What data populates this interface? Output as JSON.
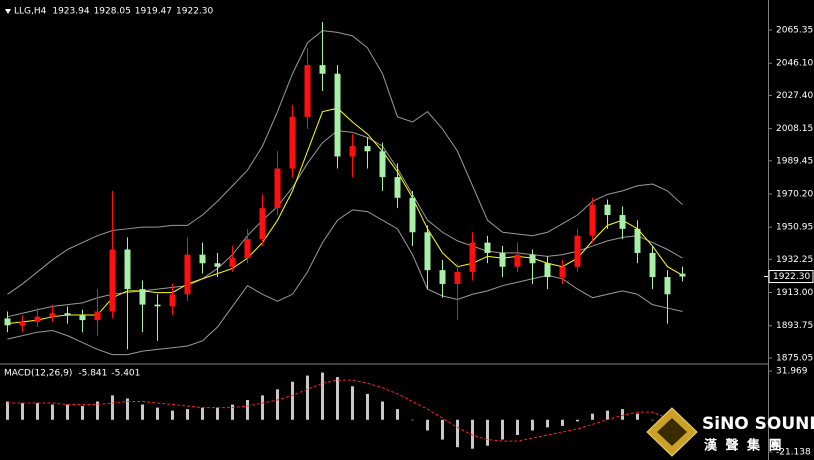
{
  "chart_data": [
    {
      "type": "candlestick",
      "title": "LLG,H4",
      "header_values": [
        1923.94,
        1928.05,
        1919.47,
        {
          "value": 1922.3,
          "label": "1922.30"
        }
      ],
      "open": [
        1898,
        1894,
        1896,
        1899,
        1901,
        1900,
        1897,
        1902,
        1938,
        1915,
        1906,
        1905,
        1912,
        1935,
        1930,
        1928,
        1933,
        1944,
        1962,
        1985,
        2015,
        2045,
        2040,
        1992,
        1998,
        1995,
        1980,
        1968,
        1948,
        1926,
        1918,
        1925,
        1942,
        1936,
        1928,
        1935,
        1930,
        1922,
        1928,
        1946,
        1964,
        1958,
        1950,
        1936,
        1922,
        1923.94
      ],
      "high": [
        1902,
        1900,
        1904,
        1906,
        1905,
        1903,
        1915,
        1972,
        1945,
        1920,
        1912,
        1918,
        1945,
        1942,
        1936,
        1940,
        1950,
        1970,
        1995,
        2022,
        2055,
        2070,
        2045,
        2005,
        2003,
        2000,
        1988,
        1972,
        1952,
        1932,
        1930,
        1948,
        1946,
        1940,
        1942,
        1938,
        1934,
        1932,
        1950,
        1968,
        1967,
        1963,
        1955,
        1940,
        1926,
        1928.05
      ],
      "low": [
        1890,
        1890,
        1893,
        1896,
        1895,
        1890,
        1888,
        1898,
        1880,
        1890,
        1885,
        1900,
        1908,
        1924,
        1922,
        1925,
        1930,
        1940,
        1958,
        1980,
        2008,
        2030,
        1985,
        1980,
        1985,
        1972,
        1962,
        1940,
        1915,
        1910,
        1897,
        1920,
        1930,
        1922,
        1925,
        1918,
        1915,
        1918,
        1925,
        1942,
        1950,
        1944,
        1930,
        1915,
        1895,
        1919.47
      ],
      "close": [
        1894,
        1896,
        1899,
        1901,
        1900,
        1897,
        1902,
        1938,
        1915,
        1906,
        1905,
        1912,
        1935,
        1930,
        1928,
        1933,
        1944,
        1962,
        1985,
        2015,
        2045,
        2040,
        1992,
        1998,
        1995,
        1980,
        1968,
        1948,
        1926,
        1918,
        1925,
        1942,
        1936,
        1928,
        1935,
        1930,
        1922,
        1928,
        1946,
        1964,
        1958,
        1950,
        1936,
        1922,
        1912,
        1922.3
      ],
      "up_color": "#ff1010",
      "down_color": "#a8f0a8",
      "lines": [
        {
          "color": "#9a9a9a",
          "values": [
            1912,
            1918,
            1925,
            1932,
            1938,
            1942,
            1946,
            1949,
            1950,
            1951,
            1951,
            1952,
            1952,
            1958,
            1966,
            1975,
            1984,
            1998,
            2018,
            2040,
            2058,
            2065,
            2064,
            2062,
            2055,
            2040,
            2015,
            2012,
            2018,
            2008,
            1995,
            1975,
            1955,
            1948,
            1947,
            1946,
            1948,
            1953,
            1958,
            1966,
            1970,
            1972,
            1975,
            1976,
            1972,
            1964
          ]
        },
        {
          "color": "#9a9a9a",
          "values": [
            1899,
            1901,
            1903,
            1905,
            1906,
            1907,
            1910,
            1912,
            1913,
            1914,
            1915,
            1916,
            1917,
            1921,
            1927,
            1935,
            1946,
            1955,
            1963,
            1974,
            1988,
            2000,
            2007,
            2006,
            2003,
            1998,
            1985,
            1970,
            1955,
            1948,
            1943,
            1940,
            1937,
            1936,
            1936,
            1935,
            1934,
            1935,
            1937,
            1940,
            1943,
            1945,
            1946,
            1942,
            1938,
            1933
          ]
        },
        {
          "color": "#9a9a9a",
          "values": [
            1886,
            1888,
            1890,
            1891,
            1888,
            1884,
            1880,
            1877,
            1877,
            1879,
            1880,
            1881,
            1882,
            1885,
            1893,
            1905,
            1917,
            1912,
            1908,
            1912,
            1925,
            1942,
            1955,
            1961,
            1960,
            1955,
            1950,
            1935,
            1915,
            1911,
            1909,
            1912,
            1914,
            1917,
            1919,
            1921,
            1923,
            1921,
            1915,
            1910,
            1912,
            1914,
            1912,
            1906,
            1904,
            1902
          ]
        },
        {
          "color": "#ffff00",
          "values": [
            1895,
            1896,
            1897,
            1899,
            1900,
            1900,
            1900,
            1910,
            1914,
            1914,
            1913,
            1913,
            1918,
            1921,
            1924,
            1927,
            1933,
            1942,
            1955,
            1972,
            1995,
            2018,
            2020,
            2012,
            2005,
            1995,
            1983,
            1968,
            1950,
            1936,
            1928,
            1930,
            1934,
            1933,
            1934,
            1933,
            1930,
            1928,
            1933,
            1943,
            1952,
            1955,
            1950,
            1940,
            1928,
            1923
          ]
        }
      ],
      "ylim": [
        1872.7,
        2079.9
      ],
      "yticks": [
        1875.05,
        1893.75,
        {
          "value": 1913,
          "label": "1913.00"
        },
        1932.25,
        1950.95,
        {
          "value": 1970.2,
          "label": "1970.20"
        },
        1989.45,
        2008.15,
        {
          "value": 2027.4,
          "label": "2027.40"
        },
        {
          "value": 2046.1,
          "label": "2046.10"
        },
        2065.35
      ],
      "last_price": {
        "value": 1922.3,
        "label": "1922.30"
      }
    },
    {
      "type": "macd",
      "title": "MACD(12,26,9)",
      "header_values": [
        -5.841,
        -5.401
      ],
      "histogram": {
        "color": "#c8c8c8",
        "values": [
          12,
          11,
          11,
          10,
          10,
          9,
          12,
          16,
          14,
          10,
          8,
          6,
          7,
          8,
          8,
          10,
          13,
          16,
          20,
          25,
          29,
          31,
          28,
          22,
          17,
          12,
          7,
          0,
          -7,
          -13,
          -18,
          -19,
          -17,
          -13,
          -10,
          -7,
          -5,
          -4,
          -1,
          4,
          6,
          7,
          4,
          0,
          -4,
          -5.841
        ]
      },
      "signal": {
        "color": "#ff2020",
        "values": [
          11,
          11,
          11,
          11,
          10,
          10,
          10,
          11,
          12,
          12,
          11,
          10,
          9,
          8,
          8,
          8,
          9,
          11,
          13,
          16,
          20,
          24,
          26,
          26,
          24,
          21,
          17,
          12,
          7,
          1,
          -5,
          -10,
          -13,
          -14,
          -14,
          -12,
          -10,
          -8,
          -6,
          -3,
          0,
          3,
          5,
          5,
          1,
          -5.401
        ]
      },
      "ylim": [
        -25.1,
        35.3
      ],
      "yticks": [
        31.969,
        -21.138
      ]
    }
  ],
  "logo": {
    "name": "SiNO SOUND",
    "tagline": "漢 聲 集 團"
  }
}
